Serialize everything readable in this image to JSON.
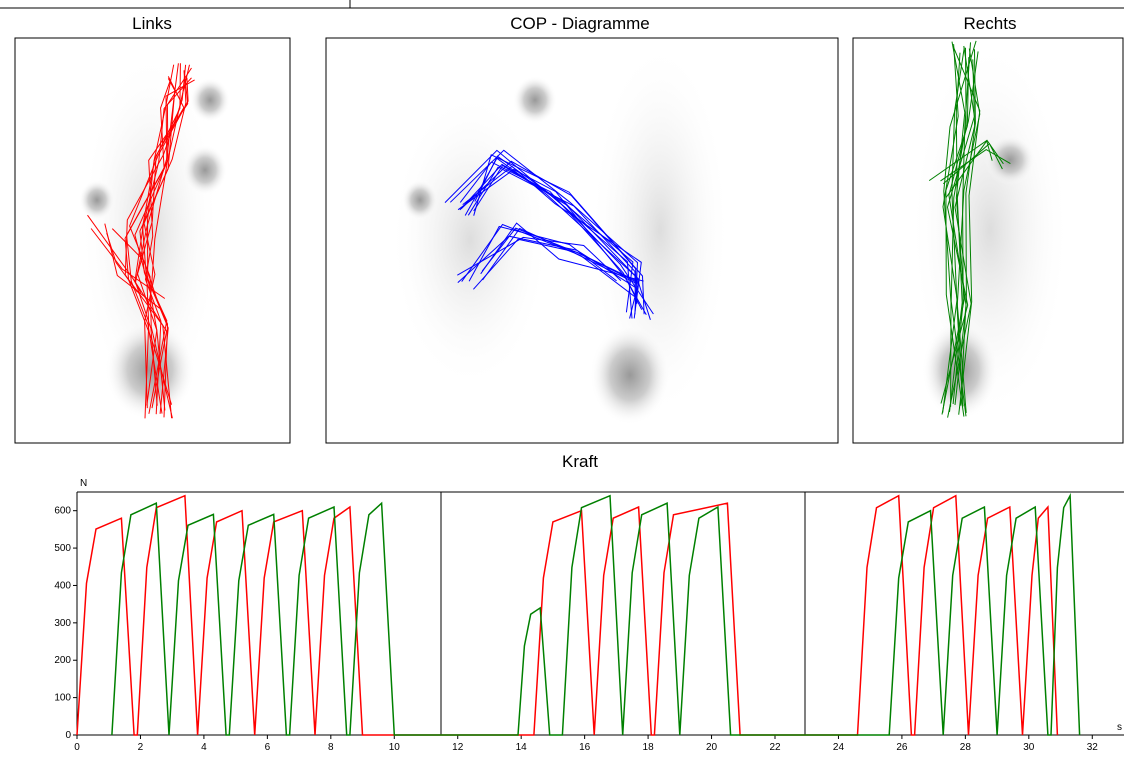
{
  "panels": {
    "left": "Links",
    "center": "COP -  Diagramme",
    "right": "Rechts"
  },
  "chart_data": {
    "type": "line",
    "title": "Kraft",
    "ylabel": "N",
    "xlabel": "s",
    "xlim": [
      0,
      33
    ],
    "ylim": [
      0,
      650
    ],
    "xticks": [
      0,
      2,
      4,
      6,
      8,
      10,
      12,
      14,
      16,
      18,
      20,
      22,
      24,
      26,
      28,
      30,
      32
    ],
    "yticks": [
      0,
      100,
      200,
      300,
      400,
      500,
      600
    ],
    "series": [
      {
        "color": "#ff0000",
        "x": [
          0,
          0.3,
          0.6,
          1.4,
          1.8,
          1.9,
          2.2,
          2.5,
          3.4,
          3.8,
          3.8,
          4.1,
          4.4,
          5.2,
          5.6,
          5.6,
          5.9,
          6.2,
          7.1,
          7.5,
          7.5,
          7.8,
          8.1,
          8.6,
          9.0,
          14.4,
          14.7,
          15.0,
          15.9,
          16.3,
          16.3,
          16.6,
          16.9,
          17.7,
          18.1,
          18.2,
          18.5,
          18.8,
          20.5,
          20.9,
          24.6,
          24.9,
          25.2,
          25.9,
          26.3,
          26.4,
          26.7,
          27.0,
          27.7,
          28.1,
          28.1,
          28.4,
          28.7,
          29.4,
          29.8,
          29.8,
          30.1,
          30.3,
          30.6,
          30.9
        ],
        "values": [
          0,
          406,
          551,
          580,
          0,
          0,
          448,
          608,
          640,
          0,
          0,
          420,
          570,
          600,
          0,
          0,
          420,
          570,
          600,
          0,
          0,
          427,
          580,
          610,
          0,
          0,
          420,
          570,
          600,
          0,
          0,
          427,
          580,
          610,
          0,
          0,
          434,
          589,
          620,
          0,
          0,
          448,
          608,
          640,
          0,
          0,
          448,
          608,
          640,
          0,
          0,
          427,
          580,
          610,
          0,
          0,
          427,
          580,
          610,
          0
        ]
      },
      {
        "color": "#008000",
        "x": [
          1.1,
          1.4,
          1.7,
          2.5,
          2.9,
          2.9,
          3.2,
          3.5,
          4.3,
          4.7,
          4.8,
          5.1,
          5.4,
          6.2,
          6.6,
          6.7,
          7.0,
          7.3,
          8.1,
          8.5,
          8.6,
          8.9,
          9.2,
          9.6,
          10.0,
          13.9,
          14.1,
          14.3,
          14.6,
          14.9,
          15.3,
          15.6,
          15.9,
          16.8,
          17.2,
          17.2,
          17.5,
          17.8,
          18.6,
          19.0,
          19.0,
          19.3,
          19.6,
          20.2,
          20.6,
          25.6,
          25.9,
          26.2,
          26.9,
          27.3,
          27.3,
          27.6,
          27.9,
          28.6,
          29.0,
          29.0,
          29.3,
          29.6,
          30.2,
          30.6,
          30.7,
          30.9,
          31.1,
          31.3,
          31.6
        ],
        "values": [
          0,
          434,
          589,
          620,
          0,
          0,
          413,
          561,
          590,
          0,
          0,
          413,
          561,
          590,
          0,
          0,
          427,
          580,
          610,
          0,
          0,
          434,
          589,
          620,
          0,
          0,
          238,
          323,
          340,
          0,
          0,
          448,
          608,
          640,
          0,
          0,
          434,
          589,
          620,
          0,
          0,
          427,
          580,
          610,
          0,
          0,
          420,
          570,
          600,
          0,
          0,
          427,
          580,
          610,
          0,
          0,
          427,
          580,
          610,
          0,
          0,
          448,
          608,
          640,
          0
        ]
      }
    ]
  }
}
